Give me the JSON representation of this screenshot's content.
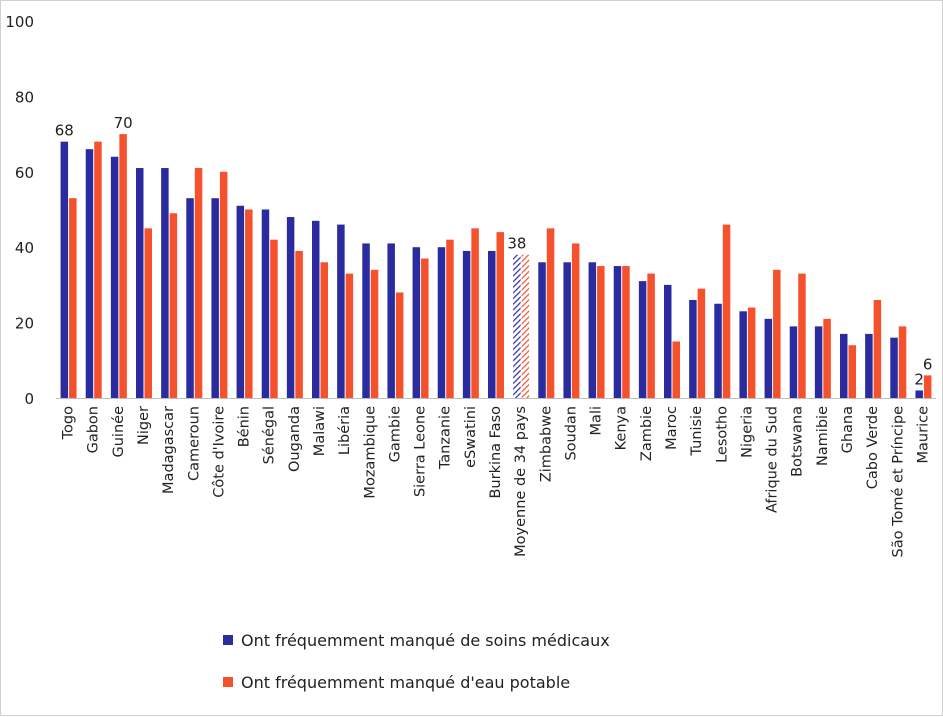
{
  "colors": {
    "series_1": "#2B2BA0",
    "series_2": "#F4512C",
    "text": "#222222",
    "axis": "#bfbfbf"
  },
  "legend": [
    {
      "label": "Ont fréquemment manqué de soins médicaux",
      "color": "#2B2BA0"
    },
    {
      "label": "Ont fréquemment manqué d'eau potable",
      "color": "#F4512C"
    }
  ],
  "chart_data": {
    "type": "bar",
    "ylim": [
      0,
      100
    ],
    "yticks": [
      0,
      20,
      40,
      60,
      80,
      100
    ],
    "grid": false,
    "legend_position": "bottom",
    "categories": [
      "Togo",
      "Gabon",
      "Guinée",
      "Niger",
      "Madagascar",
      "Cameroun",
      "Côte d'Ivoire",
      "Bénin",
      "Sénégal",
      "Ouganda",
      "Malawi",
      "Libéria",
      "Mozambique",
      "Gambie",
      "Sierra Leone",
      "Tanzanie",
      "eSwatini",
      "Burkina Faso",
      "Moyenne de 34 pays",
      "Zimbabwe",
      "Soudan",
      "Mali",
      "Kenya",
      "Zambie",
      "Maroc",
      "Tunisie",
      "Lesotho",
      "Nigeria",
      "Afrique du Sud",
      "Botswana",
      "Namibie",
      "Ghana",
      "Cabo Verde",
      "São Tomé et Príncipe",
      "Maurice"
    ],
    "highlight_category": "Moyenne de 34 pays",
    "series": [
      {
        "name": "Ont fréquemment manqué de soins médicaux",
        "values": [
          68,
          66,
          64,
          61,
          61,
          53,
          53,
          51,
          50,
          48,
          47,
          46,
          41,
          41,
          40,
          40,
          39,
          39,
          38,
          36,
          36,
          36,
          35,
          31,
          30,
          26,
          25,
          23,
          21,
          19,
          19,
          17,
          17,
          16,
          2
        ]
      },
      {
        "name": "Ont fréquemment manqué d'eau potable",
        "values": [
          53,
          68,
          70,
          45,
          49,
          61,
          60,
          50,
          42,
          39,
          36,
          33,
          34,
          28,
          37,
          42,
          45,
          44,
          38,
          45,
          41,
          35,
          35,
          33,
          15,
          29,
          46,
          24,
          34,
          33,
          21,
          14,
          26,
          19,
          6
        ]
      }
    ],
    "data_labels": [
      {
        "category": "Togo",
        "series": 0,
        "text": "68"
      },
      {
        "category": "Guinée",
        "series": 1,
        "text": "70"
      },
      {
        "category": "Moyenne de 34 pays",
        "series": 0,
        "text": "38"
      },
      {
        "category": "Maurice",
        "series": 0,
        "text": "2"
      },
      {
        "category": "Maurice",
        "series": 1,
        "text": "6"
      }
    ]
  }
}
